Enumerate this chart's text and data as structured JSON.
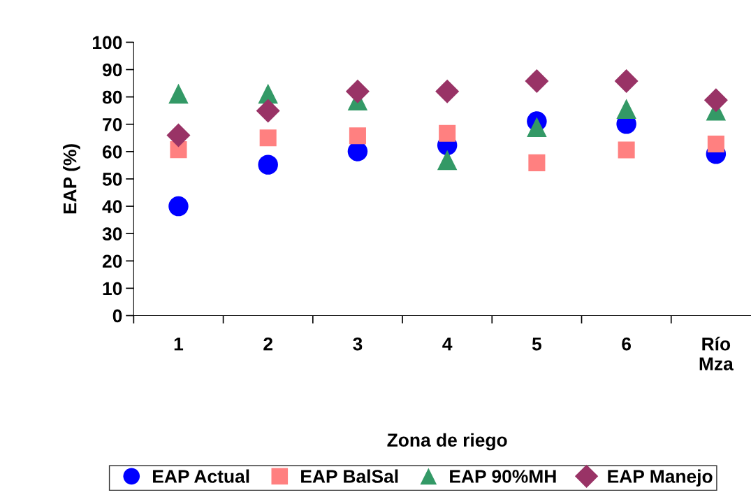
{
  "chart_data": {
    "type": "scatter",
    "xlabel": "Zona de riego",
    "ylabel": "EAP (%)",
    "categories": [
      "1",
      "2",
      "3",
      "4",
      "5",
      "6",
      "Río\nMza"
    ],
    "ylim": [
      0,
      100
    ],
    "yticks": [
      0,
      10,
      20,
      30,
      40,
      50,
      60,
      70,
      80,
      90,
      100
    ],
    "grid": false,
    "legend": "bottom",
    "series": [
      {
        "name": "EAP Actual",
        "color": "#0000ff",
        "marker": "circle",
        "values": [
          40,
          55.2,
          60.1,
          62.3,
          71.1,
          70.1,
          59.1
        ]
      },
      {
        "name": "EAP BalSal",
        "color": "#ff8080",
        "marker": "square",
        "values": [
          60.7,
          65,
          65.8,
          66.7,
          55.9,
          60.6,
          62.8
        ]
      },
      {
        "name": "EAP 90%MH",
        "color": "#339966",
        "marker": "triangle",
        "values": [
          81.2,
          81.2,
          78.7,
          56.9,
          69,
          75.6,
          75
        ]
      },
      {
        "name": "EAP Manejo",
        "color": "#993366",
        "marker": "diamond",
        "values": [
          66,
          74.9,
          82,
          82,
          85.8,
          85.8,
          78.8
        ]
      }
    ]
  }
}
